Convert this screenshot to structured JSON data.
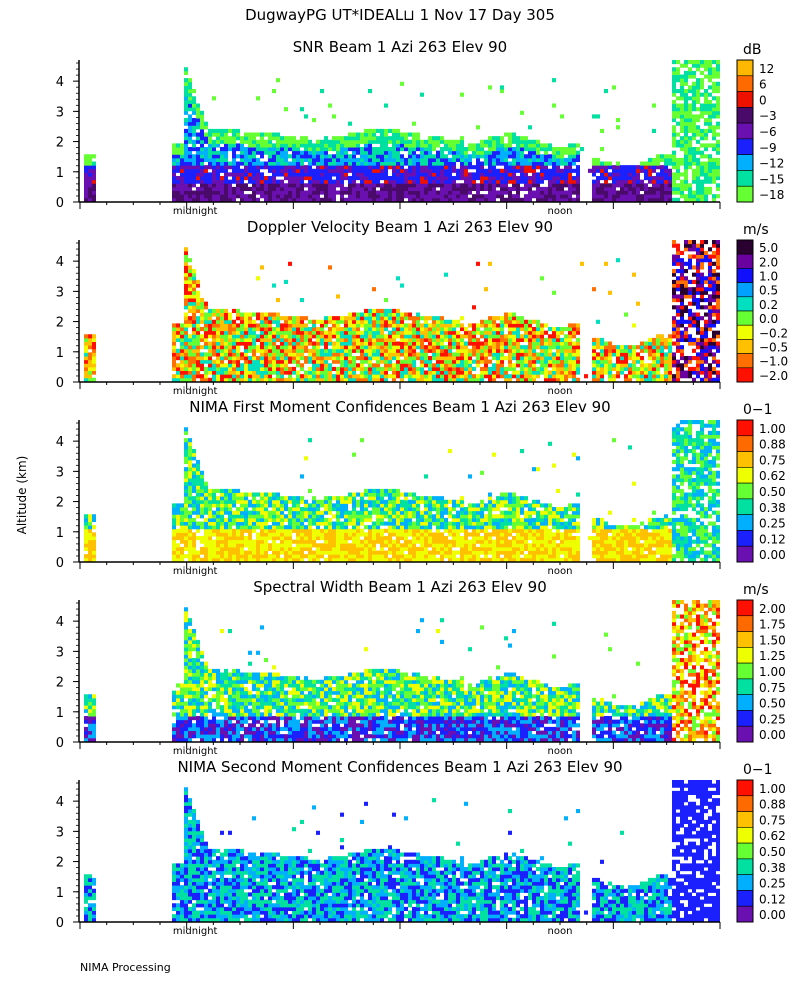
{
  "header": {
    "title": "DugwayPG UT*IDEAL⊔   1 Nov 17 Day 305"
  },
  "y_axis_label": "Altitude (km)",
  "footer": {
    "text": "NIMA Processing"
  },
  "chart_data": [
    {
      "type": "heatmap",
      "title": "SNR Beam 1 Azi 263 Elev 90",
      "units": "dB",
      "ylabel": "Altitude (km)",
      "ylim": [
        0,
        4.7
      ],
      "yticks": [
        0,
        1,
        2,
        3,
        4
      ],
      "xticks": [
        {
          "label": "midnight",
          "pos": 0.18
        },
        {
          "label": "noon",
          "pos": 0.75
        }
      ],
      "colorbar": {
        "labels": [
          "12",
          "6",
          "0",
          "−3",
          "−6",
          "−9",
          "−12",
          "−15",
          "−18"
        ],
        "colors": [
          "#ffb800",
          "#ff6a00",
          "#ee1100",
          "#4a0a6a",
          "#6b10b0",
          "#1a20ff",
          "#00b0ff",
          "#00e0a0",
          "#66ff33"
        ]
      },
      "field": "snr"
    },
    {
      "type": "heatmap",
      "title": "Doppler Velocity Beam 1 Azi 263 Elev 90",
      "units": "m/s",
      "ylabel": "Altitude (km)",
      "ylim": [
        0,
        4.7
      ],
      "yticks": [
        0,
        1,
        2,
        3,
        4
      ],
      "xticks": [
        {
          "label": "midnight",
          "pos": 0.18
        },
        {
          "label": "noon",
          "pos": 0.75
        }
      ],
      "colorbar": {
        "labels": [
          "5.0",
          "2.0",
          "1.0",
          "0.5",
          "0.2",
          "0.0",
          "−0.2",
          "−0.5",
          "−1.0",
          "−2.0"
        ],
        "colors": [
          "#2a0030",
          "#6a00a0",
          "#1010ff",
          "#00a0ff",
          "#00e0c0",
          "#66ff33",
          "#eeff00",
          "#ffc000",
          "#ff7000",
          "#ff1000"
        ]
      },
      "field": "doppler"
    },
    {
      "type": "heatmap",
      "title": "NIMA First Moment Confidences Beam 1 Azi 263 Elev 90",
      "units": "0−1",
      "ylabel": "Altitude (km)",
      "ylim": [
        0,
        4.7
      ],
      "yticks": [
        0,
        1,
        2,
        3,
        4
      ],
      "xticks": [
        {
          "label": "midnight",
          "pos": 0.18
        },
        {
          "label": "noon",
          "pos": 0.75
        }
      ],
      "colorbar": {
        "labels": [
          "1.00",
          "0.88",
          "0.75",
          "0.62",
          "0.50",
          "0.38",
          "0.25",
          "0.12",
          "0.00"
        ],
        "colors": [
          "#ff1000",
          "#ff6a00",
          "#ffc000",
          "#eeff00",
          "#66ff33",
          "#00e0a0",
          "#00b0ff",
          "#1a20ff",
          "#6b10b0"
        ]
      },
      "field": "conf1"
    },
    {
      "type": "heatmap",
      "title": "Spectral Width Beam 1 Azi 263 Elev 90",
      "units": "m/s",
      "ylabel": "Altitude (km)",
      "ylim": [
        0,
        4.7
      ],
      "yticks": [
        0,
        1,
        2,
        3,
        4
      ],
      "xticks": [
        {
          "label": "midnight",
          "pos": 0.18
        },
        {
          "label": "noon",
          "pos": 0.75
        }
      ],
      "colorbar": {
        "labels": [
          "2.00",
          "1.75",
          "1.50",
          "1.25",
          "1.00",
          "0.75",
          "0.50",
          "0.25",
          "0.00"
        ],
        "colors": [
          "#ff1000",
          "#ff6a00",
          "#ffc000",
          "#eeff00",
          "#66ff33",
          "#00e0a0",
          "#00b0ff",
          "#1a20ff",
          "#6b10b0"
        ]
      },
      "field": "width"
    },
    {
      "type": "heatmap",
      "title": "NIMA Second Moment Confidences Beam 1 Azi 263 Elev 90",
      "units": "0−1",
      "ylabel": "Altitude (km)",
      "ylim": [
        0,
        4.7
      ],
      "yticks": [
        0,
        1,
        2,
        3,
        4
      ],
      "xticks": [
        {
          "label": "midnight",
          "pos": 0.18
        },
        {
          "label": "noon",
          "pos": 0.75
        }
      ],
      "colorbar": {
        "labels": [
          "1.00",
          "0.88",
          "0.75",
          "0.62",
          "0.50",
          "0.38",
          "0.25",
          "0.12",
          "0.00"
        ],
        "colors": [
          "#ff1000",
          "#ff6a00",
          "#ffc000",
          "#eeff00",
          "#66ff33",
          "#00e0a0",
          "#00b0ff",
          "#1a20ff",
          "#6b10b0"
        ]
      },
      "field": "conf2"
    }
  ]
}
